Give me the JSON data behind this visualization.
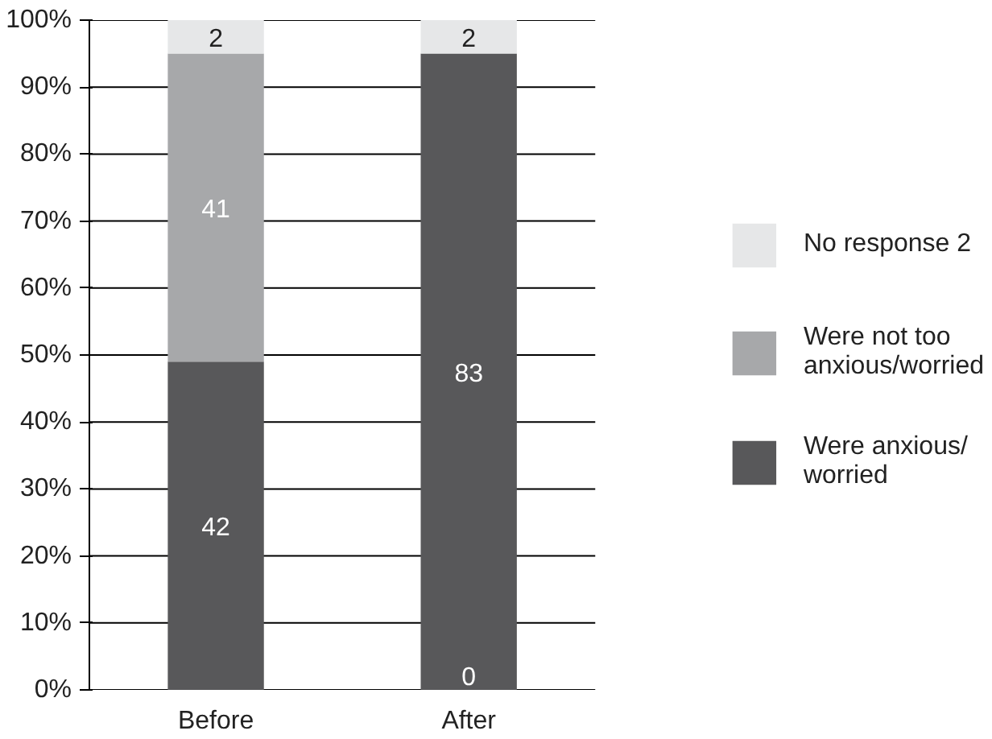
{
  "chart_data": {
    "type": "bar",
    "stacked": true,
    "categories": [
      "Before",
      "After"
    ],
    "series": [
      {
        "name": "Were anxious/ worried",
        "color": "#58585a",
        "values": [
          49,
          95
        ]
      },
      {
        "name": "Were not too anxious/worried",
        "color": "#a7a8aa",
        "values": [
          46,
          0
        ]
      },
      {
        "name": "No response 2",
        "color": "#e6e7e8",
        "values": [
          5,
          5
        ]
      }
    ],
    "annotations": [
      "42",
      "41",
      "2",
      "83",
      "0",
      "2"
    ],
    "ylim": [
      0,
      100
    ],
    "yticks": [
      {
        "value": 0,
        "label": "0%"
      },
      {
        "value": 10,
        "label": "10%"
      },
      {
        "value": 20,
        "label": "20%"
      },
      {
        "value": 30,
        "label": "30%"
      },
      {
        "value": 40,
        "label": "40%"
      },
      {
        "value": 50,
        "label": "50%"
      },
      {
        "value": 60,
        "label": "60%"
      },
      {
        "value": 70,
        "label": "70%"
      },
      {
        "value": 80,
        "label": "80%"
      },
      {
        "value": 90,
        "label": "90%"
      },
      {
        "value": 100,
        "label": "100%"
      }
    ],
    "grid": "y",
    "legend": "right"
  }
}
